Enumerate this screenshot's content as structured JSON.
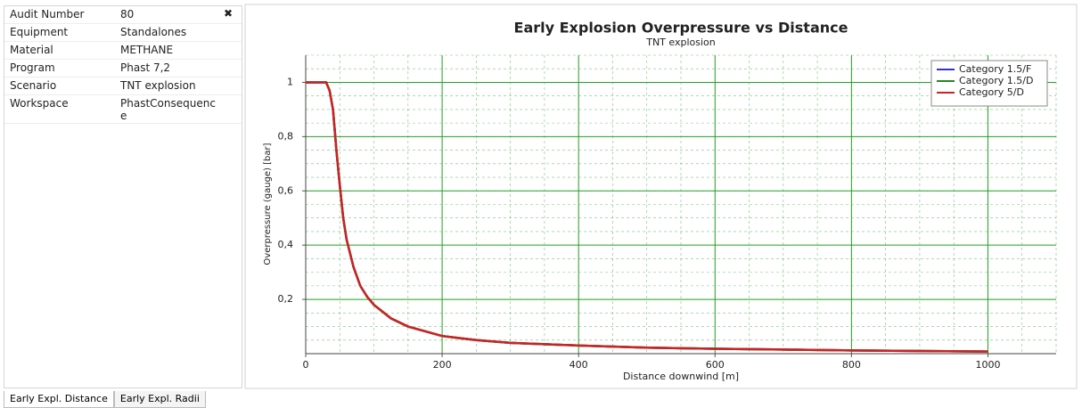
{
  "panel": {
    "rows": [
      [
        "Audit Number",
        "80"
      ],
      [
        "Equipment",
        "Standalones"
      ],
      [
        "Material",
        "METHANE"
      ],
      [
        "Program",
        "Phast 7,2"
      ],
      [
        "Scenario",
        "TNT explosion"
      ],
      [
        "Workspace",
        "PhastConsequence"
      ]
    ]
  },
  "tabs": [
    "Early Expl. Distance",
    "Early Expl. Radii"
  ],
  "chart_data": {
    "type": "line",
    "title": "Early Explosion Overpressure vs Distance",
    "subtitle": "TNT explosion",
    "x_label": "Distance downwind [m]",
    "y_label": "Overpressure (gauge) [bar]",
    "x": [
      0,
      30,
      35,
      40,
      45,
      50,
      55,
      60,
      70,
      80,
      90,
      100,
      125,
      150,
      200,
      250,
      300,
      400,
      500,
      600,
      700,
      800,
      900,
      1000
    ],
    "series": [
      {
        "name": "Category 1.5/F",
        "color": "#3333cc",
        "values": [
          1,
          1,
          0.97,
          0.9,
          0.75,
          0.62,
          0.5,
          0.42,
          0.32,
          0.25,
          0.21,
          0.18,
          0.13,
          0.1,
          0.065,
          0.05,
          0.04,
          0.03,
          0.022,
          0.018,
          0.015,
          0.012,
          0.01,
          0.008
        ]
      },
      {
        "name": "Category 1.5/D",
        "color": "#228822",
        "values": [
          1,
          1,
          0.97,
          0.9,
          0.75,
          0.62,
          0.5,
          0.42,
          0.32,
          0.25,
          0.21,
          0.18,
          0.13,
          0.1,
          0.065,
          0.05,
          0.04,
          0.03,
          0.022,
          0.018,
          0.015,
          0.012,
          0.01,
          0.008
        ]
      },
      {
        "name": "Category 5/D",
        "color": "#cc2222",
        "values": [
          1,
          1,
          0.97,
          0.9,
          0.75,
          0.62,
          0.5,
          0.42,
          0.32,
          0.25,
          0.21,
          0.18,
          0.13,
          0.1,
          0.065,
          0.05,
          0.04,
          0.03,
          0.022,
          0.018,
          0.015,
          0.012,
          0.01,
          0.008
        ]
      }
    ],
    "xlim": [
      0,
      1100
    ],
    "xticks": [
      0,
      200,
      400,
      600,
      800,
      1000
    ],
    "ylim": [
      0,
      1.1
    ],
    "yticks": [
      {
        "value": 0.2,
        "label": "0,2"
      },
      {
        "value": 0.4,
        "label": "0,4"
      },
      {
        "value": 0.6,
        "label": "0,6"
      },
      {
        "value": 0.8,
        "label": "0,8"
      },
      1
    ],
    "grid": true,
    "minor_grid": true,
    "grid_color": "#22a022",
    "legend": "upper right"
  }
}
